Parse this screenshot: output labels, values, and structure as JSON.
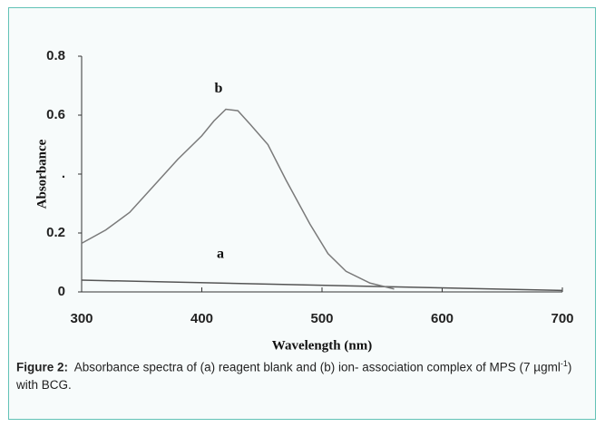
{
  "chart_data": {
    "type": "line",
    "x_label": "Wavelength (nm)",
    "y_label": "Absorbance",
    "xlim": [
      300,
      700
    ],
    "xticks": [
      300,
      400,
      500,
      600,
      700
    ],
    "ylim": [
      0,
      0.8
    ],
    "yticks": [
      0,
      0.2,
      {
        "value": 0.4,
        "label": "."
      },
      0.6,
      0.8
    ],
    "series": [
      {
        "name": "a",
        "color": "#555555",
        "x": [
          300,
          700
        ],
        "values": [
          0.04,
          0.005
        ]
      },
      {
        "name": "b",
        "color": "#7a7a7a",
        "x": [
          300,
          320,
          340,
          360,
          380,
          400,
          410,
          420,
          430,
          440,
          455,
          470,
          490,
          505,
          520,
          540,
          560
        ],
        "values": [
          0.165,
          0.21,
          0.27,
          0.36,
          0.45,
          0.53,
          0.58,
          0.62,
          0.615,
          0.57,
          0.5,
          0.38,
          0.23,
          0.13,
          0.07,
          0.03,
          0.01
        ]
      }
    ]
  },
  "caption": {
    "label": "Figure 2:",
    "text": "Absorbance spectra of (a) reagent blank and (b) ion- association complex of MPS (7 µgml",
    "superscript": "-1",
    "text_end": ") with BCG."
  }
}
